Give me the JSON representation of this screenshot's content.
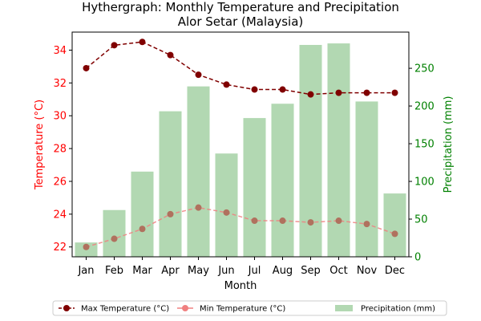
{
  "chart_data": {
    "type": "bar+line",
    "title": "Hythergraph: Monthly Temperature and Precipitation",
    "subtitle": "Alor Setar (Malaysia)",
    "xlabel": "Month",
    "categories": [
      "Jan",
      "Feb",
      "Mar",
      "Apr",
      "May",
      "Jun",
      "Jul",
      "Aug",
      "Sep",
      "Oct",
      "Nov",
      "Dec"
    ],
    "temperature_axis": {
      "label": "Temperature (°C)",
      "ylim": [
        21.4,
        35.1
      ],
      "ticks": [
        22,
        24,
        26,
        28,
        30,
        32,
        34
      ],
      "color": "#ff0000"
    },
    "precipitation_axis": {
      "label": "Precipitation (mm)",
      "ylim": [
        0,
        298
      ],
      "ticks": [
        0,
        50,
        100,
        150,
        200,
        250
      ],
      "color": "#008000"
    },
    "series": [
      {
        "name": "Max Temperature (°C)",
        "type": "line",
        "axis": "temperature",
        "color": "#800000",
        "values": [
          32.9,
          34.3,
          34.5,
          33.7,
          32.5,
          31.9,
          31.6,
          31.6,
          31.3,
          31.4,
          31.4,
          31.4
        ]
      },
      {
        "name": "Min Temperature (°C)",
        "type": "line",
        "axis": "temperature",
        "color": "#f08080",
        "values": [
          22.0,
          22.5,
          23.1,
          24.0,
          24.4,
          24.1,
          23.6,
          23.6,
          23.5,
          23.6,
          23.4,
          22.8
        ]
      },
      {
        "name": "Precipitation (mm)",
        "type": "bar",
        "axis": "precipitation",
        "color": "#b2d8b2",
        "values": [
          19,
          62,
          113,
          193,
          226,
          137,
          184,
          203,
          281,
          283,
          206,
          84
        ]
      }
    ],
    "legend_position": "bottom"
  }
}
